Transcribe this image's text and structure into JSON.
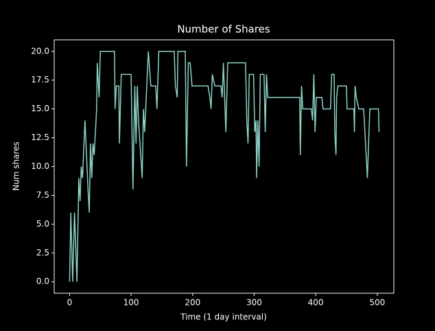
{
  "chart_data": {
    "type": "line",
    "title": "Number of Shares",
    "x_label": "Time (1 day interval)",
    "y_label": "Num shares",
    "xlim": [
      -25,
      527
    ],
    "ylim": [
      -1,
      21
    ],
    "xticks": [
      0,
      100,
      200,
      300,
      400,
      500
    ],
    "yticks": [
      {
        "value": 0,
        "label": "0.0"
      },
      {
        "value": 2.5,
        "label": "2.5"
      },
      {
        "value": 5,
        "label": "5.0"
      },
      {
        "value": 7.5,
        "label": "7.5"
      },
      {
        "value": 10,
        "label": "10.0"
      },
      {
        "value": 12.5,
        "label": "12.5"
      },
      {
        "value": 15,
        "label": "15.0"
      },
      {
        "value": 17.5,
        "label": "17.5"
      },
      {
        "value": 20,
        "label": "20.0"
      }
    ],
    "series": [
      {
        "color": "#8dd3c7",
        "x": [
          0,
          2,
          5,
          8,
          12,
          15,
          17,
          19,
          21,
          25,
          30,
          32,
          34,
          36,
          38,
          40,
          44,
          45,
          48,
          50,
          73,
          74,
          76,
          80,
          81,
          84,
          100,
          103,
          106,
          108,
          110,
          112,
          118,
          120,
          122,
          128,
          132,
          140,
          142,
          145,
          170,
          172,
          175,
          176,
          188,
          190,
          193,
          196,
          199,
          225,
          228,
          230,
          232,
          236,
          246,
          248,
          250,
          254,
          257,
          286,
          288,
          290,
          292,
          299,
          301,
          303,
          304,
          306,
          308,
          310,
          316,
          318,
          320,
          322,
          374,
          375,
          377,
          379,
          393,
          395,
          397,
          399,
          401,
          410,
          412,
          424,
          426,
          430,
          431,
          433,
          434,
          436,
          450,
          451,
          462,
          463,
          464,
          466,
          470,
          478,
          484,
          488,
          502,
          503
        ],
        "values": [
          0,
          6,
          0,
          6,
          0,
          9,
          7,
          10,
          9,
          14,
          8,
          6,
          12,
          9,
          12,
          11,
          15,
          19,
          16,
          20,
          20,
          15,
          17,
          17,
          12,
          18,
          18,
          8,
          17,
          12,
          17,
          14,
          9,
          15,
          13,
          20,
          17,
          17,
          15,
          20,
          20,
          17,
          16,
          20,
          20,
          10,
          19,
          19,
          17,
          17,
          16,
          15,
          18,
          17,
          17,
          16,
          19,
          13,
          19,
          19,
          14,
          12,
          18,
          18,
          13,
          14,
          9,
          14,
          10,
          18,
          18,
          13,
          18,
          16,
          16,
          11,
          17,
          15,
          15,
          14,
          18,
          13,
          16,
          16,
          15,
          15,
          18,
          18,
          13,
          11,
          16,
          17,
          17,
          15,
          15,
          13,
          17,
          16,
          15,
          15,
          9,
          15,
          15,
          13
        ]
      }
    ]
  }
}
